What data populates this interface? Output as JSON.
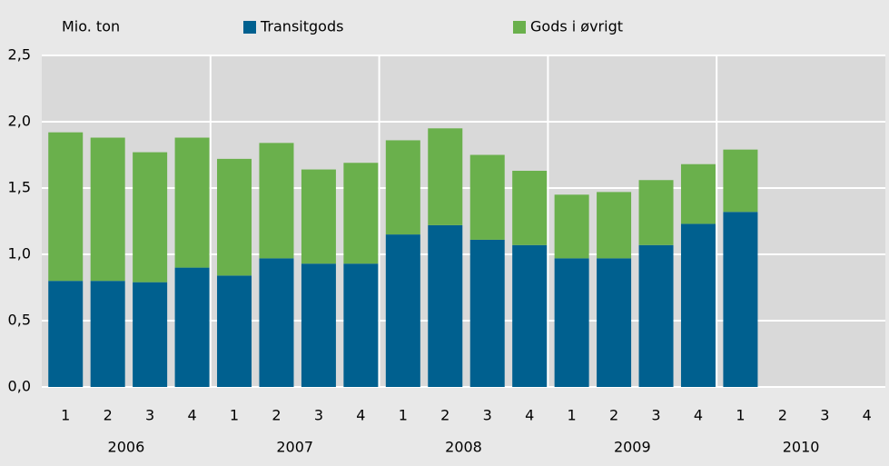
{
  "chart_data": {
    "type": "stacked_bar",
    "y_label": "Mio. ton",
    "categories": [
      "1",
      "2",
      "3",
      "4",
      "1",
      "2",
      "3",
      "4",
      "1",
      "2",
      "3",
      "4",
      "1",
      "2",
      "3",
      "4",
      "1",
      "2",
      "3",
      "4"
    ],
    "groups": [
      "2006",
      "2007",
      "2008",
      "2009",
      "2010"
    ],
    "series": [
      {
        "name": "Transitgods",
        "color": "#00608f",
        "values": [
          0.8,
          0.8,
          0.79,
          0.9,
          0.84,
          0.97,
          0.93,
          0.93,
          1.15,
          1.22,
          1.11,
          1.07,
          0.97,
          0.97,
          1.07,
          1.23,
          1.32,
          null,
          null,
          null
        ]
      },
      {
        "name": "Gods i øvrigt",
        "color": "#6ab04c",
        "values": [
          1.12,
          1.08,
          0.98,
          0.98,
          0.88,
          0.87,
          0.71,
          0.76,
          0.71,
          0.73,
          0.64,
          0.56,
          0.48,
          0.5,
          0.49,
          0.45,
          0.47,
          null,
          null,
          null
        ]
      }
    ],
    "ylim": [
      0,
      2.5
    ],
    "yticks": [
      {
        "value": 0,
        "label": "0,0"
      },
      {
        "value": 0.5,
        "label": "0,5"
      },
      {
        "value": 1,
        "label": "1,0"
      },
      {
        "value": 1.5,
        "label": "1,5"
      },
      {
        "value": 2,
        "label": "2,0"
      },
      {
        "value": 2.5,
        "label": "2,5"
      }
    ],
    "grid": true
  }
}
